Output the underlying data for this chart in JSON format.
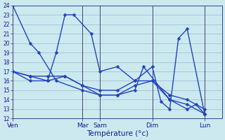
{
  "xlabel": "Température (°c)",
  "ylim": [
    12,
    24
  ],
  "yticks": [
    12,
    13,
    14,
    15,
    16,
    17,
    18,
    19,
    20,
    21,
    22,
    23,
    24
  ],
  "xtick_labels": [
    "Ven",
    "Mar",
    "Sam",
    "Dim",
    "Lun"
  ],
  "xtick_pos": [
    0,
    48,
    60,
    96,
    132
  ],
  "xlim": [
    0,
    144
  ],
  "background_color": "#cce9f0",
  "grid_color": "#99bbcc",
  "line_color": "#2244bb",
  "vline_color": "#444477",
  "series": [
    {
      "x": [
        0,
        12,
        18,
        30,
        48,
        60,
        72,
        84,
        90,
        108,
        120,
        126,
        132
      ],
      "y": [
        24,
        20,
        19,
        16,
        15,
        14.5,
        14.5,
        15,
        17.5,
        14,
        13,
        13.5,
        12.5
      ]
    },
    {
      "x": [
        0,
        12,
        24,
        30,
        36,
        42,
        54,
        60,
        72,
        84,
        96,
        102,
        108,
        114,
        120,
        132
      ],
      "y": [
        17,
        16.5,
        16,
        19,
        23,
        23,
        21,
        17,
        17.5,
        16,
        17.5,
        13.8,
        13,
        20.5,
        21.5,
        12.5
      ]
    },
    {
      "x": [
        0,
        12,
        24,
        36,
        48,
        60,
        72,
        84,
        96,
        108,
        120,
        132
      ],
      "y": [
        17,
        16,
        16,
        16.5,
        15.5,
        14.5,
        14.5,
        15.5,
        16,
        14,
        13.5,
        12.5
      ]
    },
    {
      "x": [
        0,
        12,
        24,
        36,
        48,
        60,
        72,
        84,
        96,
        108,
        120,
        132
      ],
      "y": [
        17,
        16.5,
        16.5,
        16.5,
        15.5,
        15,
        15,
        16,
        16,
        14.5,
        14,
        13
      ]
    }
  ],
  "marker": "D",
  "markersize": 2.5,
  "linewidth": 1.0
}
